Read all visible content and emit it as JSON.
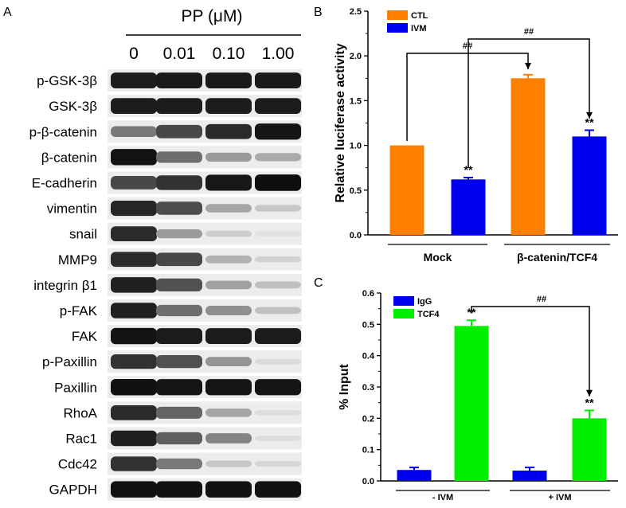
{
  "panels": {
    "a": {
      "letter": "A",
      "treatment_label": "PP (μM)",
      "doses": [
        "0",
        "0.01",
        "0.10",
        "1.00"
      ],
      "rows": [
        {
          "label": "p-GSK-3β",
          "levels": [
            0.92,
            0.93,
            0.93,
            0.93
          ]
        },
        {
          "label": "GSK-3β",
          "levels": [
            0.92,
            0.92,
            0.92,
            0.92
          ]
        },
        {
          "label": "p-β-catenin",
          "levels": [
            0.5,
            0.72,
            0.85,
            0.95
          ]
        },
        {
          "label": "β-catenin",
          "levels": [
            0.96,
            0.55,
            0.35,
            0.28
          ]
        },
        {
          "label": "E-cadherin",
          "levels": [
            0.72,
            0.82,
            0.94,
            0.98
          ]
        },
        {
          "label": "vimentin",
          "levels": [
            0.88,
            0.7,
            0.3,
            0.15
          ]
        },
        {
          "label": "snail",
          "levels": [
            0.85,
            0.35,
            0.12,
            0.03
          ]
        },
        {
          "label": "MMP9",
          "levels": [
            0.85,
            0.72,
            0.25,
            0.1
          ]
        },
        {
          "label": "integrin β1",
          "levels": [
            0.9,
            0.68,
            0.32,
            0.18
          ]
        },
        {
          "label": "p-FAK",
          "levels": [
            0.9,
            0.55,
            0.4,
            0.18
          ]
        },
        {
          "label": "FAK",
          "levels": [
            0.96,
            0.92,
            0.92,
            0.92
          ]
        },
        {
          "label": "p-Paxillin",
          "levels": [
            0.82,
            0.68,
            0.38,
            0.06
          ]
        },
        {
          "label": "Paxillin",
          "levels": [
            0.97,
            0.95,
            0.95,
            0.95
          ]
        },
        {
          "label": "RhoA",
          "levels": [
            0.85,
            0.6,
            0.3,
            0.05
          ]
        },
        {
          "label": "Rac1",
          "levels": [
            0.9,
            0.62,
            0.45,
            0.05
          ]
        },
        {
          "label": "Cdc42",
          "levels": [
            0.82,
            0.5,
            0.15,
            0.08
          ]
        },
        {
          "label": "GAPDH",
          "levels": [
            0.97,
            0.97,
            0.97,
            0.97
          ]
        }
      ]
    },
    "b": {
      "letter": "B"
    },
    "c": {
      "letter": "C"
    }
  },
  "chart_data": [
    {
      "panel": "B",
      "type": "bar",
      "ylabel": "Relative luciferase activity",
      "ylim": [
        0,
        2.5
      ],
      "yticks": [
        "0.0",
        "0.5",
        "1.0",
        "1.5",
        "2.0",
        "2.5"
      ],
      "groups": [
        "Mock",
        "β-catenin/TCF4"
      ],
      "series": [
        {
          "name": "CTL",
          "color": "#ff8000",
          "values": [
            1.0,
            1.75
          ],
          "errors": [
            0,
            0.04
          ]
        },
        {
          "name": "IVM",
          "color": "#0000ee",
          "values": [
            0.62,
            1.1
          ],
          "errors": [
            0.02,
            0.07
          ]
        }
      ],
      "significance_marks": [
        "**",
        "**"
      ],
      "brackets": [
        "##",
        "##"
      ],
      "legend": "top-left",
      "grid": false
    },
    {
      "panel": "C",
      "type": "bar",
      "ylabel": "% Input",
      "ylim": [
        0,
        0.6
      ],
      "yticks": [
        "0.0",
        "0.1",
        "0.2",
        "0.3",
        "0.4",
        "0.5",
        "0.6"
      ],
      "groups": [
        "- IVM",
        "+ IVM"
      ],
      "series": [
        {
          "name": "IgG",
          "color": "#0000ee",
          "values": [
            0.035,
            0.033
          ],
          "errors": [
            0.008,
            0.01
          ]
        },
        {
          "name": "TCF4",
          "color": "#00ee00",
          "values": [
            0.495,
            0.2
          ],
          "errors": [
            0.018,
            0.025
          ]
        }
      ],
      "significance_marks": [
        "**",
        "**"
      ],
      "brackets": [
        "##"
      ],
      "legend": "top-left",
      "grid": false
    }
  ]
}
